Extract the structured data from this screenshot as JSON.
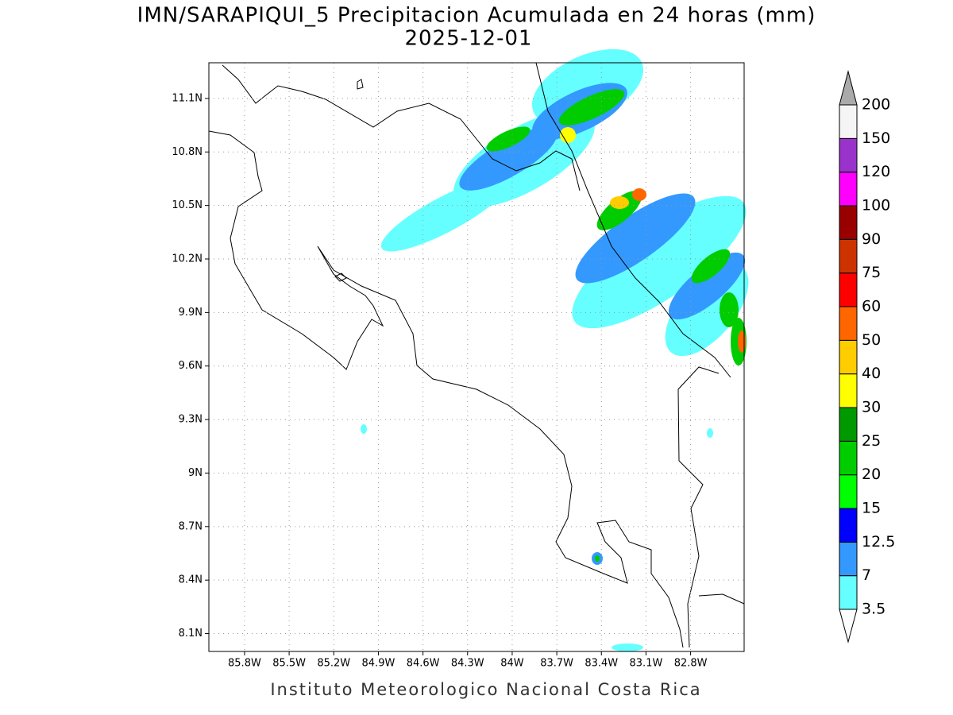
{
  "map": {
    "title": "IMN/SARAPIQUI_5 Precipitacion Acumulada en 24 horas (mm)",
    "subtitle": "2025-12-01",
    "footer": "Instituto Meteorologico Nacional Costa Rica",
    "xlim": [
      -86.04,
      -82.44
    ],
    "ylim": [
      8.0,
      11.3
    ],
    "xticks": [
      {
        "value": -85.8,
        "label": "85.8W"
      },
      {
        "value": -85.5,
        "label": "85.5W"
      },
      {
        "value": -85.2,
        "label": "85.2W"
      },
      {
        "value": -84.9,
        "label": "84.9W"
      },
      {
        "value": -84.6,
        "label": "84.6W"
      },
      {
        "value": -84.3,
        "label": "84.3W"
      },
      {
        "value": -84.0,
        "label": "84W"
      },
      {
        "value": -83.7,
        "label": "83.7W"
      },
      {
        "value": -83.4,
        "label": "83.4W"
      },
      {
        "value": -83.1,
        "label": "83.1W"
      },
      {
        "value": -82.8,
        "label": "82.8W"
      }
    ],
    "yticks": [
      {
        "value": 11.1,
        "label": "11.1N"
      },
      {
        "value": 10.8,
        "label": "10.8N"
      },
      {
        "value": 10.5,
        "label": "10.5N"
      },
      {
        "value": 10.2,
        "label": "10.2N"
      },
      {
        "value": 9.9,
        "label": "9.9N"
      },
      {
        "value": 9.6,
        "label": "9.6N"
      },
      {
        "value": 9.3,
        "label": "9.3N"
      },
      {
        "value": 9.0,
        "label": "9N"
      },
      {
        "value": 8.7,
        "label": "8.7N"
      },
      {
        "value": 8.4,
        "label": "8.4N"
      },
      {
        "value": 8.1,
        "label": "8.1N"
      }
    ],
    "grid": true,
    "colorbar": {
      "levels": [
        3.5,
        7,
        12.5,
        15,
        20,
        25,
        30,
        40,
        50,
        60,
        75,
        90,
        100,
        120,
        150,
        200
      ],
      "colors": [
        "#66ffff",
        "#3399ff",
        "#0000ff",
        "#00ff00",
        "#00cc00",
        "#009900",
        "#ffff00",
        "#ffcc00",
        "#ff6600",
        "#ff0000",
        "#cc3300",
        "#990000",
        "#ff00ff",
        "#9933cc",
        "#f5f5f5"
      ],
      "under_color": "#ffffff",
      "over_color": "#aaaaaa"
    }
  }
}
